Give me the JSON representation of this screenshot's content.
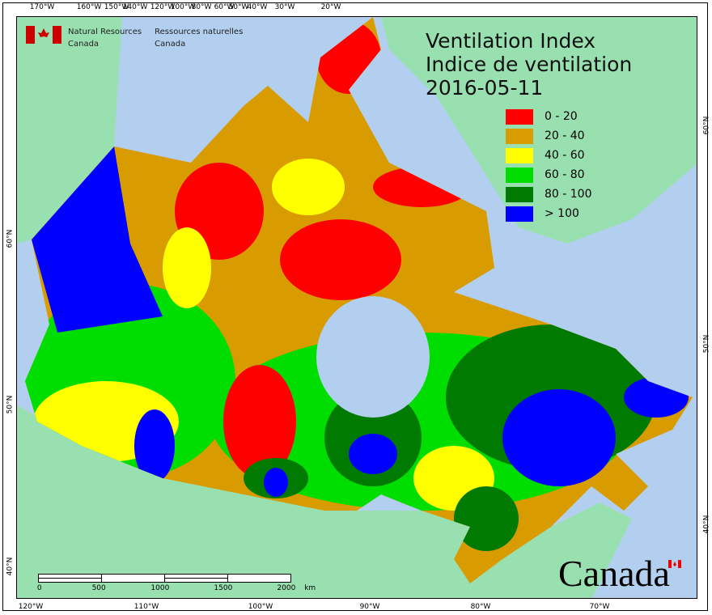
{
  "title": {
    "line1": "Ventilation Index",
    "line2": "Indice de ventilation",
    "date": "2016-05-11"
  },
  "agency": {
    "en_line1": "Natural Resources",
    "en_line2": "Canada",
    "fr_line1": "Ressources naturelles",
    "fr_line2": "Canada"
  },
  "legend": [
    {
      "label": "0 - 20",
      "color": "#ff0000"
    },
    {
      "label": "20 - 40",
      "color": "#d99c00"
    },
    {
      "label": "40 - 60",
      "color": "#ffff00"
    },
    {
      "label": "60 - 80",
      "color": "#00dd00"
    },
    {
      "label": "80 - 100",
      "color": "#007a00"
    },
    {
      "label": "> 100",
      "color": "#0000ff"
    }
  ],
  "axes": {
    "top": [
      "170°W",
      "160°W",
      "150°W",
      "140°W",
      "120°W",
      "100°W",
      "80°W",
      "60°W",
      "50°W",
      "40°W",
      "30°W",
      "20°W"
    ],
    "bottom": [
      "120°W",
      "110°W",
      "100°W",
      "90°W",
      "80°W",
      "70°W"
    ],
    "left": [
      "60°N",
      "50°N",
      "40°N"
    ],
    "right": [
      "60°N",
      "50°N",
      "40°N"
    ]
  },
  "scalebar": {
    "labels": [
      "0",
      "500",
      "1000",
      "1500",
      "2000"
    ],
    "unit": "km"
  },
  "wordmark": "Canada",
  "colors": {
    "ocean": "#b3cff0",
    "land": "#98e0b0"
  }
}
